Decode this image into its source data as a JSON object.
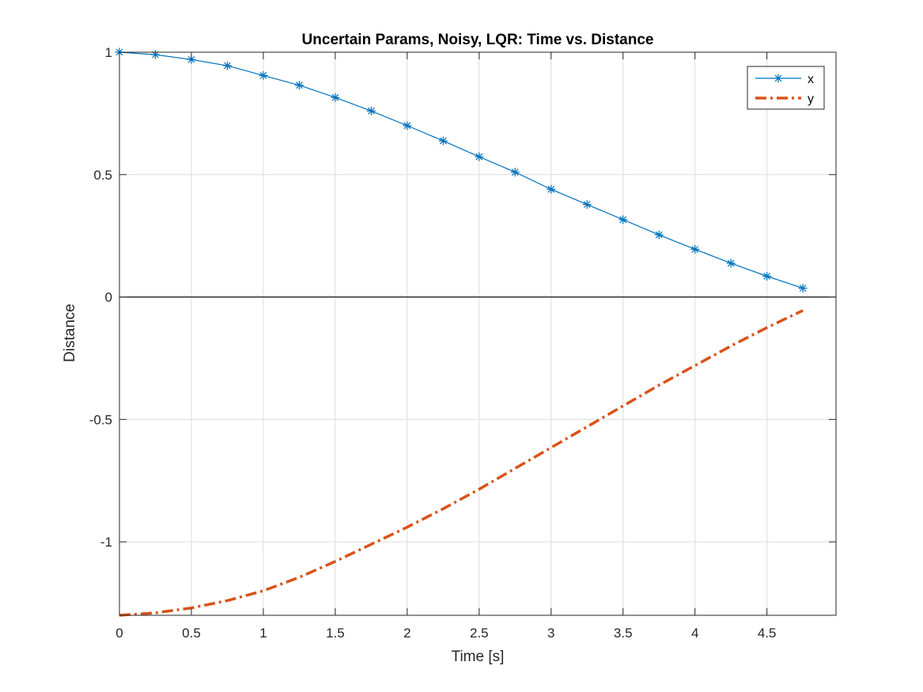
{
  "chart_data": {
    "type": "line",
    "title": "Uncertain Params, Noisy, LQR: Time vs. Distance",
    "xlabel": "Time [s]",
    "ylabel": "Distance",
    "xlim": [
      0,
      4.98
    ],
    "ylim": [
      -1.3,
      1.0
    ],
    "xticks": [
      0,
      0.5,
      1,
      1.5,
      2,
      2.5,
      3,
      3.5,
      4,
      4.5
    ],
    "xtick_labels": [
      "0",
      "0.5",
      "1",
      "1.5",
      "2",
      "2.5",
      "3",
      "3.5",
      "4",
      "4.5"
    ],
    "yticks": [
      1,
      0.5,
      0,
      -0.5,
      -1
    ],
    "ytick_labels": [
      "1",
      "0.5",
      "0",
      "-0.5",
      "-1"
    ],
    "grid": true,
    "zero_line": true,
    "legend_position": "top-right",
    "series": [
      {
        "name": "x",
        "color": "#0072BD",
        "style": "solid-with-asterisk-markers",
        "x": [
          0,
          0.25,
          0.5,
          0.75,
          1,
          1.25,
          1.5,
          1.75,
          2,
          2.25,
          2.5,
          2.75,
          3,
          3.25,
          3.5,
          3.75,
          4,
          4.25,
          4.5,
          4.75
        ],
        "y": [
          1.0,
          0.99,
          0.97,
          0.945,
          0.905,
          0.865,
          0.815,
          0.76,
          0.7,
          0.638,
          0.573,
          0.51,
          0.44,
          0.378,
          0.316,
          0.254,
          0.195,
          0.138,
          0.085,
          0.036
        ]
      },
      {
        "name": "y",
        "color": "#D95319",
        "style": "dash-dot",
        "x": [
          0,
          0.25,
          0.5,
          0.75,
          1,
          1.25,
          1.5,
          1.75,
          2,
          2.25,
          2.5,
          2.75,
          3,
          3.25,
          3.5,
          3.75,
          4,
          4.25,
          4.5,
          4.75
        ],
        "y": [
          -1.3,
          -1.29,
          -1.27,
          -1.24,
          -1.2,
          -1.145,
          -1.08,
          -1.01,
          -0.94,
          -0.865,
          -0.785,
          -0.7,
          -0.615,
          -0.53,
          -0.445,
          -0.36,
          -0.28,
          -0.2,
          -0.125,
          -0.055
        ]
      }
    ]
  }
}
